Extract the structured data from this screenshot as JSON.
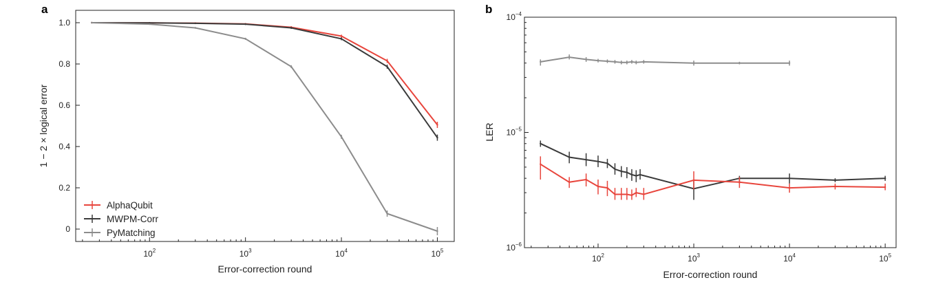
{
  "chart_data": [
    {
      "panel": "a",
      "type": "line",
      "x_scale": "log",
      "xlabel": "Error-correction round",
      "ylabel": "1 − 2 × logical error",
      "xlim": [
        17,
        150000
      ],
      "ylim": [
        -0.06,
        1.06
      ],
      "x_ticks": [
        {
          "value": 100,
          "base": "10",
          "exp": "2"
        },
        {
          "value": 1000,
          "base": "10",
          "exp": "3"
        },
        {
          "value": 10000,
          "base": "10",
          "exp": "4"
        },
        {
          "value": 100000,
          "base": "10",
          "exp": "5"
        }
      ],
      "y_ticks": [
        {
          "value": 0,
          "label": "0"
        },
        {
          "value": 0.2,
          "label": "0.2"
        },
        {
          "value": 0.4,
          "label": "0.4"
        },
        {
          "value": 0.6,
          "label": "0.6"
        },
        {
          "value": 0.8,
          "label": "0.8"
        },
        {
          "value": 1.0,
          "label": "1.0"
        }
      ],
      "legend_position": "bottom-left",
      "series": [
        {
          "name": "AlphaQubit",
          "color": "#e8453c",
          "x": [
            25,
            100,
            300,
            1000,
            3000,
            10000,
            30000,
            100000
          ],
          "y": [
            1.0,
            0.999,
            0.998,
            0.994,
            0.978,
            0.935,
            0.815,
            0.505
          ],
          "err": [
            0.003,
            0.003,
            0.003,
            0.004,
            0.005,
            0.007,
            0.01,
            0.015
          ]
        },
        {
          "name": "MWPM-Corr",
          "color": "#3a3a3a",
          "x": [
            25,
            100,
            300,
            1000,
            3000,
            10000,
            30000,
            100000
          ],
          "y": [
            1.0,
            0.999,
            0.997,
            0.993,
            0.975,
            0.922,
            0.787,
            0.443
          ],
          "err": [
            0.003,
            0.003,
            0.003,
            0.004,
            0.005,
            0.007,
            0.01,
            0.015
          ]
        },
        {
          "name": "PyMatching",
          "color": "#8c8c8c",
          "x": [
            25,
            100,
            300,
            1000,
            3000,
            10000,
            30000,
            100000
          ],
          "y": [
            1.0,
            0.993,
            0.975,
            0.922,
            0.787,
            0.447,
            0.075,
            -0.01
          ],
          "err": [
            0.003,
            0.003,
            0.004,
            0.005,
            0.007,
            0.01,
            0.015,
            0.02
          ]
        }
      ]
    },
    {
      "panel": "b",
      "type": "line",
      "x_scale": "log",
      "y_scale": "log",
      "xlabel": "Error-correction round",
      "ylabel": "LER",
      "xlim": [
        17,
        130000
      ],
      "ylim": [
        1e-06,
        0.0001
      ],
      "x_ticks": [
        {
          "value": 100,
          "base": "10",
          "exp": "2"
        },
        {
          "value": 1000,
          "base": "10",
          "exp": "3"
        },
        {
          "value": 10000,
          "base": "10",
          "exp": "4"
        },
        {
          "value": 100000,
          "base": "10",
          "exp": "5"
        }
      ],
      "y_ticks": [
        {
          "value": 1e-06,
          "base": "10",
          "exp": "−6"
        },
        {
          "value": 1e-05,
          "base": "10",
          "exp": "−5"
        },
        {
          "value": 0.0001,
          "base": "10",
          "exp": "−4"
        }
      ],
      "series": [
        {
          "name": "PyMatching",
          "color": "#8c8c8c",
          "x": [
            25,
            50,
            75,
            100,
            125,
            150,
            175,
            200,
            225,
            250,
            300,
            1000,
            3000,
            10000
          ],
          "y": [
            4.1e-05,
            4.5e-05,
            4.3e-05,
            4.2e-05,
            4.15e-05,
            4.1e-05,
            4.05e-05,
            4.05e-05,
            4.1e-05,
            4.05e-05,
            4.1e-05,
            4e-05,
            4e-05,
            4e-05
          ],
          "err_lo": [
            3.8e-05,
            4.3e-05,
            4.1e-05,
            4.05e-05,
            4e-05,
            3.95e-05,
            3.9e-05,
            3.9e-05,
            3.95e-05,
            3.9e-05,
            3.95e-05,
            3.8e-05,
            3.9e-05,
            3.8e-05
          ],
          "err_hi": [
            4.3e-05,
            4.75e-05,
            4.5e-05,
            4.35e-05,
            4.3e-05,
            4.25e-05,
            4.2e-05,
            4.2e-05,
            4.25e-05,
            4.2e-05,
            4.25e-05,
            4.2e-05,
            4.1e-05,
            4.2e-05
          ]
        },
        {
          "name": "MWPM-Corr",
          "color": "#3a3a3a",
          "x": [
            25,
            50,
            75,
            100,
            125,
            150,
            175,
            200,
            225,
            250,
            275,
            1000,
            3000,
            10000,
            30000,
            100000
          ],
          "y": [
            8e-06,
            6.1e-06,
            5.8e-06,
            5.6e-06,
            5.4e-06,
            4.8e-06,
            4.6e-06,
            4.5e-06,
            4.3e-06,
            4.2e-06,
            4.3e-06,
            3.25e-06,
            4e-06,
            4e-06,
            3.85e-06,
            4e-06
          ],
          "err_lo": [
            7.5e-06,
            5.4e-06,
            5.1e-06,
            5e-06,
            4.9e-06,
            4.3e-06,
            4.1e-06,
            4e-06,
            3.8e-06,
            3.7e-06,
            3.9e-06,
            2.6e-06,
            3.6e-06,
            3.6e-06,
            3.7e-06,
            3.8e-06
          ],
          "err_hi": [
            8.5e-06,
            6.8e-06,
            6.6e-06,
            6.3e-06,
            5.9e-06,
            5.4e-06,
            5.1e-06,
            5e-06,
            4.8e-06,
            4.7e-06,
            4.8e-06,
            3.9e-06,
            4.2e-06,
            4.4e-06,
            4e-06,
            4.2e-06
          ]
        },
        {
          "name": "AlphaQubit",
          "color": "#e8453c",
          "x": [
            25,
            50,
            75,
            100,
            125,
            150,
            175,
            200,
            225,
            250,
            300,
            1000,
            3000,
            10000,
            30000,
            100000
          ],
          "y": [
            5.3e-06,
            3.7e-06,
            3.9e-06,
            3.4e-06,
            3.3e-06,
            2.9e-06,
            2.9e-06,
            2.9e-06,
            2.85e-06,
            3e-06,
            2.9e-06,
            3.85e-06,
            3.7e-06,
            3.3e-06,
            3.4e-06,
            3.35e-06
          ],
          "err_lo": [
            3.9e-06,
            3.3e-06,
            3.4e-06,
            2.9e-06,
            2.8e-06,
            2.6e-06,
            2.6e-06,
            2.6e-06,
            2.6e-06,
            2.75e-06,
            2.6e-06,
            3.2e-06,
            3.3e-06,
            3e-06,
            3.2e-06,
            3.15e-06
          ],
          "err_hi": [
            6.2e-06,
            4.1e-06,
            4.4e-06,
            3.9e-06,
            3.8e-06,
            3.3e-06,
            3.3e-06,
            3.3e-06,
            3.2e-06,
            3.3e-06,
            3.3e-06,
            4.6e-06,
            4.1e-06,
            3.6e-06,
            3.6e-06,
            3.6e-06
          ]
        }
      ]
    }
  ]
}
